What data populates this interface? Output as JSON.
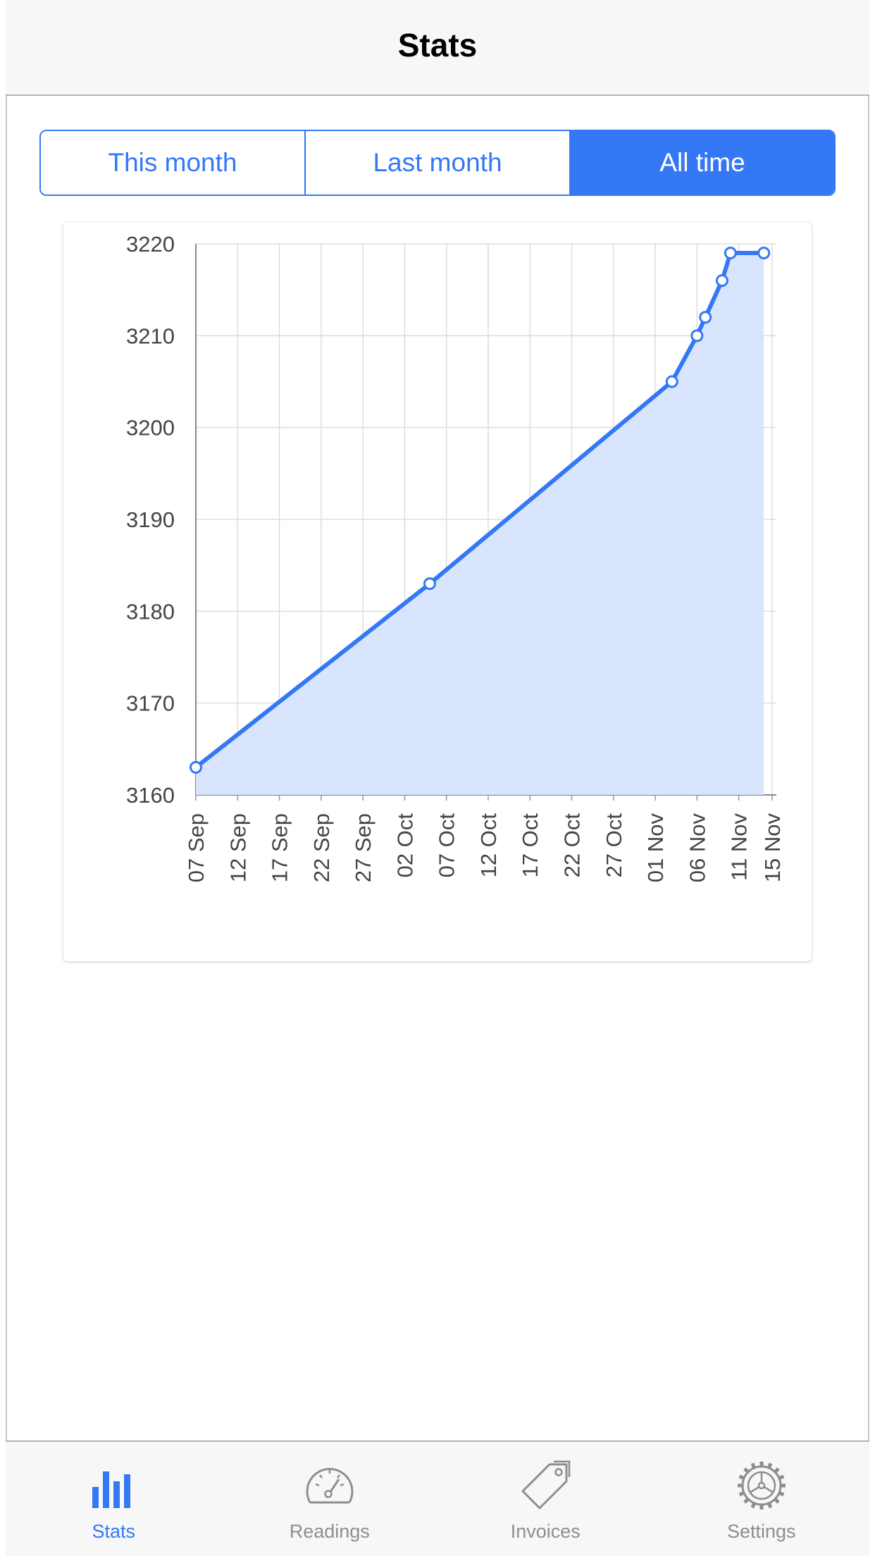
{
  "navbar": {
    "title": "Stats"
  },
  "segments": [
    {
      "label": "This month",
      "active": false
    },
    {
      "label": "Last month",
      "active": false
    },
    {
      "label": "All time",
      "active": true
    }
  ],
  "colors": {
    "accent": "#3478f6",
    "area_fill": "#d6e4fd",
    "grid": "#dddddd",
    "tab_inactive": "#8e8e8e"
  },
  "chart_data": {
    "type": "area",
    "title": "",
    "xlabel": "",
    "ylabel": "",
    "ylim": [
      3160,
      3220
    ],
    "yticks": [
      3160,
      3170,
      3180,
      3190,
      3200,
      3210,
      3220
    ],
    "xlim": [
      "2014-09-07",
      "2014-11-15"
    ],
    "xticks": [
      "07 Sep",
      "12 Sep",
      "17 Sep",
      "22 Sep",
      "27 Sep",
      "02 Oct",
      "07 Oct",
      "12 Oct",
      "17 Oct",
      "22 Oct",
      "27 Oct",
      "01 Nov",
      "06 Nov",
      "11 Nov",
      "15 Nov"
    ],
    "grid": true,
    "series": [
      {
        "points": [
          {
            "x": "2014-09-07",
            "y": 3163
          },
          {
            "x": "2014-10-05",
            "y": 3183
          },
          {
            "x": "2014-11-03",
            "y": 3205
          },
          {
            "x": "2014-11-06",
            "y": 3210
          },
          {
            "x": "2014-11-07",
            "y": 3212
          },
          {
            "x": "2014-11-09",
            "y": 3216
          },
          {
            "x": "2014-11-10",
            "y": 3219
          },
          {
            "x": "2014-11-14",
            "y": 3219
          }
        ]
      }
    ]
  },
  "tabs": [
    {
      "label": "Stats",
      "icon": "bar-chart-icon",
      "active": true
    },
    {
      "label": "Readings",
      "icon": "gauge-icon",
      "active": false
    },
    {
      "label": "Invoices",
      "icon": "tag-icon",
      "active": false
    },
    {
      "label": "Settings",
      "icon": "gear-icon",
      "active": false
    }
  ]
}
